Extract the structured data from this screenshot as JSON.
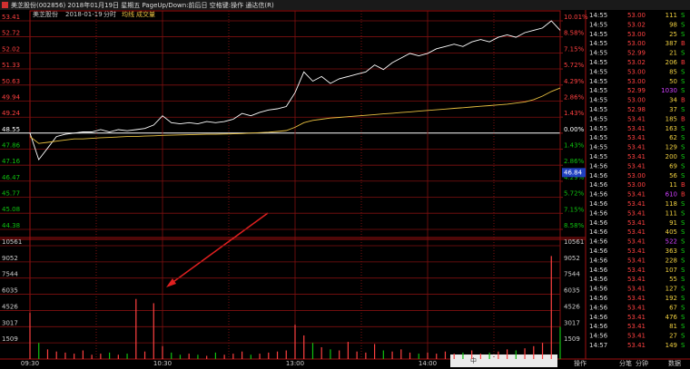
{
  "title_bar": "美芝股份(002856) 2018年01月19日 星期五 PageUp/Down:前后日 空格键:操作 通达信(R)",
  "header": {
    "stock": "美芝股份",
    "date": "2018-01-19",
    "period": "分时",
    "ma": "均线",
    "volume": "成交量"
  },
  "chart_data": [
    {
      "type": "line",
      "categories": [
        "09:30",
        null,
        null,
        null,
        null,
        null,
        null,
        null,
        null,
        null,
        null,
        null,
        null,
        null,
        null,
        "10:30",
        null,
        null,
        null,
        null,
        null,
        null,
        null,
        null,
        null,
        null,
        null,
        null,
        null,
        null,
        "13:00",
        null,
        null,
        null,
        null,
        null,
        null,
        null,
        null,
        null,
        null,
        null,
        null,
        null,
        null,
        "14:00",
        null,
        null,
        null,
        null,
        null,
        null,
        null,
        null,
        null,
        null,
        null,
        null,
        null,
        null,
        null
      ],
      "series": [
        {
          "name": "分时",
          "color": "#ffffff",
          "values": [
            48.55,
            47.4,
            47.9,
            48.4,
            48.5,
            48.55,
            48.6,
            48.6,
            48.7,
            48.6,
            48.7,
            48.65,
            48.7,
            48.75,
            48.9,
            49.3,
            49.0,
            48.95,
            49.0,
            48.95,
            49.05,
            49.0,
            49.05,
            49.15,
            49.4,
            49.3,
            49.45,
            49.55,
            49.6,
            49.7,
            50.3,
            51.2,
            50.8,
            51.0,
            50.7,
            50.9,
            51.0,
            51.1,
            51.2,
            51.5,
            51.3,
            51.6,
            51.8,
            52.0,
            51.9,
            52.0,
            52.2,
            52.3,
            52.4,
            52.3,
            52.5,
            52.6,
            52.5,
            52.7,
            52.8,
            52.7,
            52.9,
            53.0,
            53.1,
            53.41,
            53.0
          ]
        },
        {
          "name": "均线",
          "color": "#e8c040",
          "values": [
            48.4,
            48.1,
            48.15,
            48.2,
            48.25,
            48.3,
            48.3,
            48.32,
            48.35,
            48.36,
            48.38,
            48.4,
            48.4,
            48.42,
            48.43,
            48.45,
            48.46,
            48.47,
            48.48,
            48.49,
            48.5,
            48.5,
            48.51,
            48.52,
            48.53,
            48.55,
            48.57,
            48.59,
            48.62,
            48.66,
            48.8,
            49.0,
            49.1,
            49.15,
            49.2,
            49.23,
            49.26,
            49.29,
            49.32,
            49.35,
            49.38,
            49.41,
            49.44,
            49.47,
            49.5,
            49.53,
            49.56,
            49.59,
            49.62,
            49.65,
            49.68,
            49.71,
            49.74,
            49.77,
            49.8,
            49.85,
            49.9,
            50.0,
            50.15,
            50.35,
            50.5
          ]
        }
      ],
      "ylim": [
        44.38,
        53.41
      ],
      "yticks": [
        53.41,
        52.72,
        52.02,
        51.33,
        50.63,
        49.94,
        49.24,
        48.55,
        47.86,
        47.16,
        46.47,
        45.77,
        45.08,
        44.38
      ],
      "y2lim": [
        -8.58,
        10.01
      ],
      "y2ticks": [
        {
          "value": 10.01,
          "label": "10.01%"
        },
        {
          "value": 8.58,
          "label": "8.58%"
        },
        {
          "value": 7.15,
          "label": "7.15%"
        },
        {
          "value": 5.72,
          "label": "5.72%"
        },
        {
          "value": 4.29,
          "label": "4.29%"
        },
        {
          "value": 2.86,
          "label": "2.86%"
        },
        {
          "value": 1.43,
          "label": "1.43%"
        },
        {
          "value": 0,
          "label": "0.00%"
        },
        {
          "value": -1.43,
          "label": "1.43%"
        },
        {
          "value": -2.86,
          "label": "2.86%"
        },
        {
          "value": -4.29,
          "label": "4.29%"
        },
        {
          "value": -5.72,
          "label": "5.72%"
        },
        {
          "value": -7.15,
          "label": "7.15%"
        },
        {
          "value": -8.58,
          "label": "8.58%"
        }
      ],
      "crosshair_value": 46.84,
      "grid": true
    },
    {
      "type": "bar",
      "values": [
        4300,
        1500,
        900,
        700,
        600,
        500,
        800,
        400,
        500,
        600,
        400,
        500,
        5600,
        700,
        5200,
        1200,
        600,
        400,
        500,
        400,
        300,
        600,
        400,
        500,
        700,
        400,
        500,
        600,
        700,
        800,
        3200,
        2200,
        1500,
        1100,
        900,
        800,
        1600,
        700,
        600,
        1400,
        800,
        700,
        900,
        600,
        500,
        600,
        500,
        700,
        500,
        600,
        800,
        500,
        600,
        700,
        900,
        800,
        1000,
        1200,
        1500,
        9600,
        3000
      ],
      "ylim": [
        0,
        10561
      ],
      "yticks": [
        1509,
        3017,
        4526,
        6035,
        7544,
        9052,
        10561
      ],
      "grid": true
    }
  ],
  "trades": {
    "side_colors": {
      "B": "#ff3c3c",
      "S": "#10d010"
    },
    "rows": [
      [
        "14:55",
        "53.00",
        111,
        "S"
      ],
      [
        "14:55",
        "53.02",
        98,
        "S"
      ],
      [
        "14:55",
        "53.00",
        25,
        "S"
      ],
      [
        "14:55",
        "53.00",
        387,
        "B"
      ],
      [
        "14:55",
        "52.99",
        21,
        "S"
      ],
      [
        "14:55",
        "53.02",
        206,
        "B"
      ],
      [
        "14:55",
        "53.00",
        85,
        "S"
      ],
      [
        "14:55",
        "53.00",
        50,
        "S"
      ],
      [
        "14:55",
        "52.99",
        1030,
        "S"
      ],
      [
        "14:55",
        "53.00",
        34,
        "B"
      ],
      [
        "14:55",
        "52.98",
        37,
        "S"
      ],
      [
        "14:55",
        "53.41",
        185,
        "B"
      ],
      [
        "14:55",
        "53.41",
        163,
        "S"
      ],
      [
        "14:55",
        "53.41",
        62,
        "S"
      ],
      [
        "14:55",
        "53.41",
        129,
        "S"
      ],
      [
        "14:55",
        "53.41",
        200,
        "S"
      ],
      [
        "14:56",
        "53.41",
        69,
        "S"
      ],
      [
        "14:56",
        "53.00",
        56,
        "S"
      ],
      [
        "14:56",
        "53.00",
        11,
        "B"
      ],
      [
        "14:56",
        "53.41",
        610,
        "B"
      ],
      [
        "14:56",
        "53.41",
        118,
        "S"
      ],
      [
        "14:56",
        "53.41",
        111,
        "S"
      ],
      [
        "14:56",
        "53.41",
        91,
        "S"
      ],
      [
        "14:56",
        "53.41",
        405,
        "S"
      ],
      [
        "14:56",
        "53.41",
        522,
        "S"
      ],
      [
        "14:56",
        "53.41",
        363,
        "S"
      ],
      [
        "14:56",
        "53.41",
        228,
        "S"
      ],
      [
        "14:56",
        "53.41",
        107,
        "S"
      ],
      [
        "14:56",
        "53.41",
        55,
        "S"
      ],
      [
        "14:56",
        "53.41",
        127,
        "S"
      ],
      [
        "14:56",
        "53.41",
        192,
        "S"
      ],
      [
        "14:56",
        "53.41",
        67,
        "S"
      ],
      [
        "14:56",
        "53.41",
        476,
        "S"
      ],
      [
        "14:56",
        "53.41",
        81,
        "S"
      ],
      [
        "14:56",
        "53.41",
        27,
        "S"
      ],
      [
        "14:57",
        "53.41",
        149,
        "S"
      ]
    ]
  },
  "tabs": [
    "操作",
    "分笔",
    "分钟",
    "数据"
  ],
  "taskbar": {
    "ime": "中"
  }
}
